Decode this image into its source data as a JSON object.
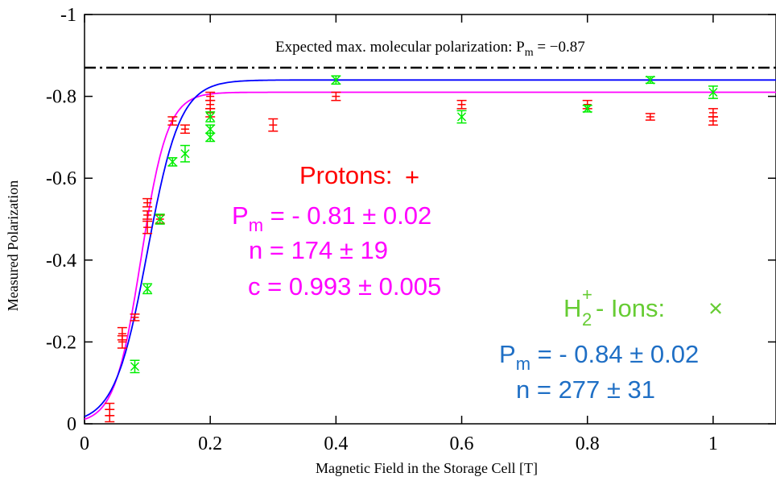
{
  "chart_data": {
    "type": "scatter",
    "xlabel": "Magnetic Field in the Storage Cell [T]",
    "ylabel": "Measured Polarization",
    "xlim": [
      0,
      1.1
    ],
    "ylim": [
      0,
      -1
    ],
    "x_ticks": [
      {
        "v": 0,
        "label": "0"
      },
      {
        "v": 0.2,
        "label": "0.2"
      },
      {
        "v": 0.4,
        "label": "0.4"
      },
      {
        "v": 0.6,
        "label": "0.6"
      },
      {
        "v": 0.8,
        "label": "0.8"
      },
      {
        "v": 1.0,
        "label": "1"
      }
    ],
    "y_ticks": [
      {
        "v": 0,
        "label": "0"
      },
      {
        "v": -0.2,
        "label": "-0.2"
      },
      {
        "v": -0.4,
        "label": "-0.4"
      },
      {
        "v": -0.6,
        "label": "-0.6"
      },
      {
        "v": -0.8,
        "label": "-0.8"
      },
      {
        "v": -1.0,
        "label": "-1"
      }
    ],
    "reference_line": {
      "y": -0.87,
      "label": "Expected max. molecular polarization: P",
      "label_sub": "m",
      "label_value": " = −0.87"
    },
    "series": [
      {
        "name": "Protons:",
        "marker_glyph": "+",
        "color": "#ff0000",
        "fit_color": "#ff00ff",
        "fit": {
          "Pm": -0.81,
          "n": 174,
          "c": 0.993
        },
        "points": [
          {
            "x": 0.04,
            "y": -0.035,
            "err": 0.015
          },
          {
            "x": 0.04,
            "y": -0.02,
            "err": 0.015
          },
          {
            "x": 0.06,
            "y": -0.2,
            "err": 0.015
          },
          {
            "x": 0.06,
            "y": -0.22,
            "err": 0.015
          },
          {
            "x": 0.08,
            "y": -0.26,
            "err": 0.008
          },
          {
            "x": 0.1,
            "y": -0.48,
            "err": 0.015
          },
          {
            "x": 0.1,
            "y": -0.51,
            "err": 0.01
          },
          {
            "x": 0.1,
            "y": -0.54,
            "err": 0.01
          },
          {
            "x": 0.12,
            "y": -0.5,
            "err": 0.01
          },
          {
            "x": 0.14,
            "y": -0.74,
            "err": 0.01
          },
          {
            "x": 0.16,
            "y": -0.72,
            "err": 0.01
          },
          {
            "x": 0.2,
            "y": -0.76,
            "err": 0.01
          },
          {
            "x": 0.2,
            "y": -0.78,
            "err": 0.01
          },
          {
            "x": 0.2,
            "y": -0.8,
            "err": 0.01
          },
          {
            "x": 0.3,
            "y": -0.73,
            "err": 0.015
          },
          {
            "x": 0.4,
            "y": -0.8,
            "err": 0.01
          },
          {
            "x": 0.6,
            "y": -0.78,
            "err": 0.01
          },
          {
            "x": 0.8,
            "y": -0.78,
            "err": 0.01
          },
          {
            "x": 0.9,
            "y": -0.75,
            "err": 0.008
          },
          {
            "x": 1.0,
            "y": -0.74,
            "err": 0.01
          },
          {
            "x": 1.0,
            "y": -0.76,
            "err": 0.01
          }
        ]
      },
      {
        "name": "- Ions:",
        "name_base": "H",
        "name_sub": "2",
        "name_sup": "+",
        "marker_glyph": "×",
        "color": "#00ee00",
        "fit_color": "#0000ff",
        "fit": {
          "Pm": -0.84,
          "n": 277
        },
        "points": [
          {
            "x": 0.08,
            "y": -0.14,
            "err": 0.015
          },
          {
            "x": 0.1,
            "y": -0.33,
            "err": 0.012
          },
          {
            "x": 0.12,
            "y": -0.5,
            "err": 0.012
          },
          {
            "x": 0.14,
            "y": -0.64,
            "err": 0.01
          },
          {
            "x": 0.16,
            "y": -0.66,
            "err": 0.02
          },
          {
            "x": 0.2,
            "y": -0.7,
            "err": 0.01
          },
          {
            "x": 0.2,
            "y": -0.72,
            "err": 0.01
          },
          {
            "x": 0.2,
            "y": -0.75,
            "err": 0.012
          },
          {
            "x": 0.4,
            "y": -0.84,
            "err": 0.01
          },
          {
            "x": 0.6,
            "y": -0.75,
            "err": 0.015
          },
          {
            "x": 0.8,
            "y": -0.77,
            "err": 0.008
          },
          {
            "x": 0.9,
            "y": -0.84,
            "err": 0.008
          },
          {
            "x": 1.0,
            "y": -0.81,
            "err": 0.015
          }
        ]
      }
    ],
    "annotations": {
      "protons_title": "Protons:",
      "protons_marker": "+",
      "protons_pm_label": "P",
      "protons_pm_sub": "m",
      "protons_pm_value": " = - 0.81 ± 0.02",
      "protons_n": "n = 174 ± 19",
      "protons_c": "c = 0.993 ± 0.005",
      "ions_h": "H",
      "ions_sub": "2",
      "ions_sup": "+",
      "ions_title": "- Ions:",
      "ions_marker": "×",
      "ions_pm_label": "P",
      "ions_pm_sub": "m",
      "ions_pm_value": " = - 0.84 ± 0.02",
      "ions_n": "n = 277 ± 31"
    }
  }
}
